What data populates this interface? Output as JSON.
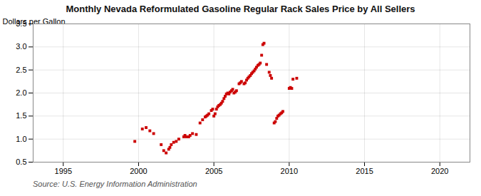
{
  "chart_data": {
    "type": "scatter",
    "title": "Monthly Nevada Reformulated Gasoline Regular Rack Sales Price by All Sellers",
    "ylabel": "Dollars per Gallon",
    "annotation": "Source: U.S. Energy Information Administration",
    "color": "#cc0000",
    "marker": "square",
    "grid": true,
    "xlim": [
      1993,
      2022
    ],
    "ylim": [
      0.5,
      3.5
    ],
    "xticks": [
      1995,
      2000,
      2005,
      2010,
      2015,
      2020
    ],
    "yticks": [
      0.5,
      {
        "value": 1.0,
        "label": "1.0"
      },
      1.5,
      {
        "value": 2.0,
        "label": "2.0"
      },
      2.5,
      {
        "value": 3.0,
        "label": "3.0"
      },
      3.5
    ],
    "x": [
      1999.75,
      2000.25,
      2000.5,
      2000.75,
      2001.0,
      2001.5,
      2001.67,
      2001.83,
      2002.0,
      2002.08,
      2002.17,
      2002.33,
      2002.5,
      2002.67,
      2003.0,
      2003.08,
      2003.17,
      2003.33,
      2003.42,
      2003.58,
      2003.83,
      2004.08,
      2004.25,
      2004.42,
      2004.5,
      2004.58,
      2004.67,
      2004.83,
      2004.92,
      2005.0,
      2005.08,
      2005.17,
      2005.25,
      2005.33,
      2005.42,
      2005.5,
      2005.58,
      2005.67,
      2005.75,
      2005.83,
      2005.92,
      2006.0,
      2006.08,
      2006.17,
      2006.25,
      2006.33,
      2006.42,
      2006.5,
      2006.67,
      2006.75,
      2006.83,
      2007.0,
      2007.08,
      2007.17,
      2007.25,
      2007.33,
      2007.42,
      2007.5,
      2007.58,
      2007.67,
      2007.75,
      2007.83,
      2007.92,
      2008.0,
      2008.08,
      2008.17,
      2008.25,
      2008.33,
      2008.5,
      2008.67,
      2008.75,
      2008.83,
      2009.0,
      2009.08,
      2009.17,
      2009.25,
      2009.33,
      2009.42,
      2009.5,
      2009.58,
      2010.0,
      2010.08,
      2010.17,
      2010.25,
      2010.5
    ],
    "values": [
      0.95,
      1.22,
      1.25,
      1.18,
      1.12,
      0.88,
      0.75,
      0.7,
      0.78,
      0.82,
      0.88,
      0.93,
      0.95,
      1.0,
      1.05,
      1.08,
      1.05,
      1.05,
      1.08,
      1.12,
      1.1,
      1.35,
      1.42,
      1.48,
      1.5,
      1.52,
      1.55,
      1.62,
      1.65,
      1.5,
      1.55,
      1.65,
      1.7,
      1.73,
      1.75,
      1.78,
      1.82,
      1.88,
      1.93,
      1.98,
      2.0,
      1.98,
      2.02,
      2.05,
      2.08,
      2.0,
      2.02,
      2.05,
      2.2,
      2.22,
      2.25,
      2.2,
      2.22,
      2.28,
      2.32,
      2.35,
      2.38,
      2.42,
      2.45,
      2.48,
      2.52,
      2.56,
      2.6,
      2.62,
      2.65,
      2.82,
      3.05,
      3.08,
      2.62,
      2.45,
      2.38,
      2.32,
      1.35,
      1.38,
      1.45,
      1.5,
      1.52,
      1.55,
      1.57,
      1.6,
      2.1,
      2.12,
      2.1,
      2.3,
      2.32
    ]
  }
}
